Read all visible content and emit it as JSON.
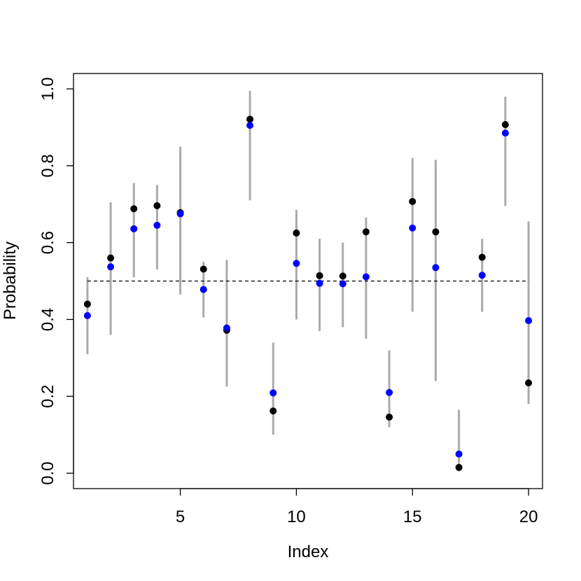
{
  "chart_data": {
    "type": "scatter",
    "title": "",
    "xlabel": "Index",
    "ylabel": "Probability",
    "xlim": [
      0.4,
      20.6
    ],
    "ylim": [
      -0.04,
      1.04
    ],
    "x_ticks": [
      5,
      10,
      15,
      20
    ],
    "y_ticks": [
      0.0,
      0.2,
      0.4,
      0.6,
      0.8,
      1.0
    ],
    "x_tick_labels": [
      "5",
      "10",
      "15",
      "20"
    ],
    "y_tick_labels": [
      "0.0",
      "0.2",
      "0.4",
      "0.6",
      "0.8",
      "1.0"
    ],
    "grid": false,
    "reference_line": {
      "y": 0.5,
      "x_from": 1,
      "x_to": 20,
      "style": "dashed"
    },
    "x": [
      1,
      2,
      3,
      4,
      5,
      6,
      7,
      8,
      9,
      10,
      11,
      12,
      13,
      14,
      15,
      16,
      17,
      18,
      19,
      20
    ],
    "interval_lower": [
      0.31,
      0.36,
      0.51,
      0.53,
      0.465,
      0.405,
      0.225,
      0.71,
      0.1,
      0.4,
      0.37,
      0.38,
      0.35,
      0.12,
      0.42,
      0.24,
      0.005,
      0.42,
      0.695,
      0.18
    ],
    "interval_upper": [
      0.51,
      0.705,
      0.755,
      0.75,
      0.85,
      0.55,
      0.555,
      0.995,
      0.34,
      0.685,
      0.61,
      0.6,
      0.665,
      0.32,
      0.82,
      0.815,
      0.165,
      0.61,
      0.98,
      0.655
    ],
    "series": [
      {
        "color": "#000000",
        "values": [
          0.44,
          0.56,
          0.688,
          0.696,
          0.678,
          0.531,
          0.372,
          0.921,
          0.162,
          0.625,
          0.514,
          0.513,
          0.628,
          0.146,
          0.707,
          0.628,
          0.015,
          0.562,
          0.907,
          0.235
        ]
      },
      {
        "color": "#0000ff",
        "values": [
          0.41,
          0.537,
          0.636,
          0.645,
          0.675,
          0.478,
          0.378,
          0.905,
          0.209,
          0.546,
          0.494,
          0.493,
          0.511,
          0.21,
          0.638,
          0.535,
          0.05,
          0.515,
          0.885,
          0.397
        ]
      }
    ],
    "interval_color": "#aaaaaa"
  }
}
